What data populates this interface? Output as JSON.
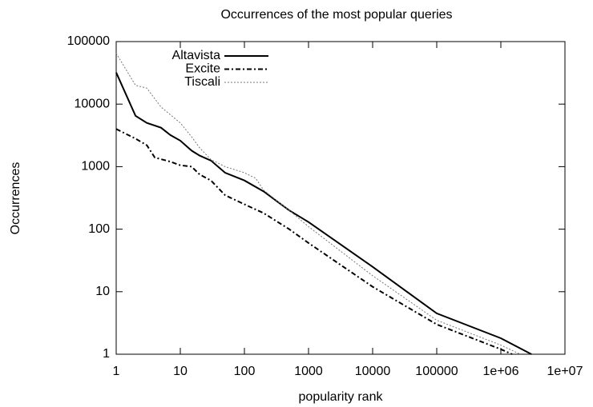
{
  "chart_data": {
    "type": "line",
    "title": "Occurrences of the most popular queries",
    "x_label": "popularity rank",
    "y_label": "Occurrences",
    "xlog": true,
    "ylog": true,
    "xlim": [
      1,
      10000000
    ],
    "ylim": [
      1,
      100000
    ],
    "xticks": [
      1,
      10,
      100,
      1000,
      10000,
      100000,
      {
        "value": 1000000,
        "label": "1e+06"
      },
      {
        "value": 10000000,
        "label": "1e+07"
      }
    ],
    "yticks": [
      1,
      10,
      100,
      1000,
      10000,
      100000
    ],
    "legend_position": "top-left",
    "series": [
      {
        "name": "Altavista",
        "color": "#000000",
        "style": "solid",
        "x": [
          1,
          2,
          3,
          5,
          7,
          10,
          15,
          20,
          30,
          50,
          100,
          200,
          500,
          1000,
          10000,
          100000,
          1000000,
          3000000
        ],
        "values": [
          32000,
          6500,
          5000,
          4200,
          3200,
          2600,
          1800,
          1500,
          1250,
          800,
          600,
          400,
          200,
          130,
          25,
          4.5,
          1.8,
          1
        ]
      },
      {
        "name": "Excite",
        "color": "#000000",
        "style": "dashdot",
        "x": [
          1,
          2,
          3,
          4,
          7,
          10,
          15,
          20,
          30,
          50,
          100,
          200,
          500,
          1000,
          10000,
          100000,
          1000000,
          1500000
        ],
        "values": [
          4000,
          2800,
          2200,
          1400,
          1200,
          1050,
          1000,
          750,
          600,
          350,
          250,
          180,
          100,
          60,
          12,
          3,
          1.2,
          1
        ]
      },
      {
        "name": "Tiscali",
        "color": "#777777",
        "style": "dotted",
        "x": [
          1,
          2,
          3,
          5,
          10,
          15,
          20,
          30,
          50,
          100,
          150,
          200,
          500,
          1000,
          10000,
          100000,
          1000000,
          2000000
        ],
        "values": [
          65000,
          20000,
          18000,
          9000,
          5000,
          3000,
          2000,
          1300,
          1000,
          800,
          650,
          420,
          200,
          110,
          18,
          3.5,
          1.4,
          1
        ]
      }
    ]
  }
}
